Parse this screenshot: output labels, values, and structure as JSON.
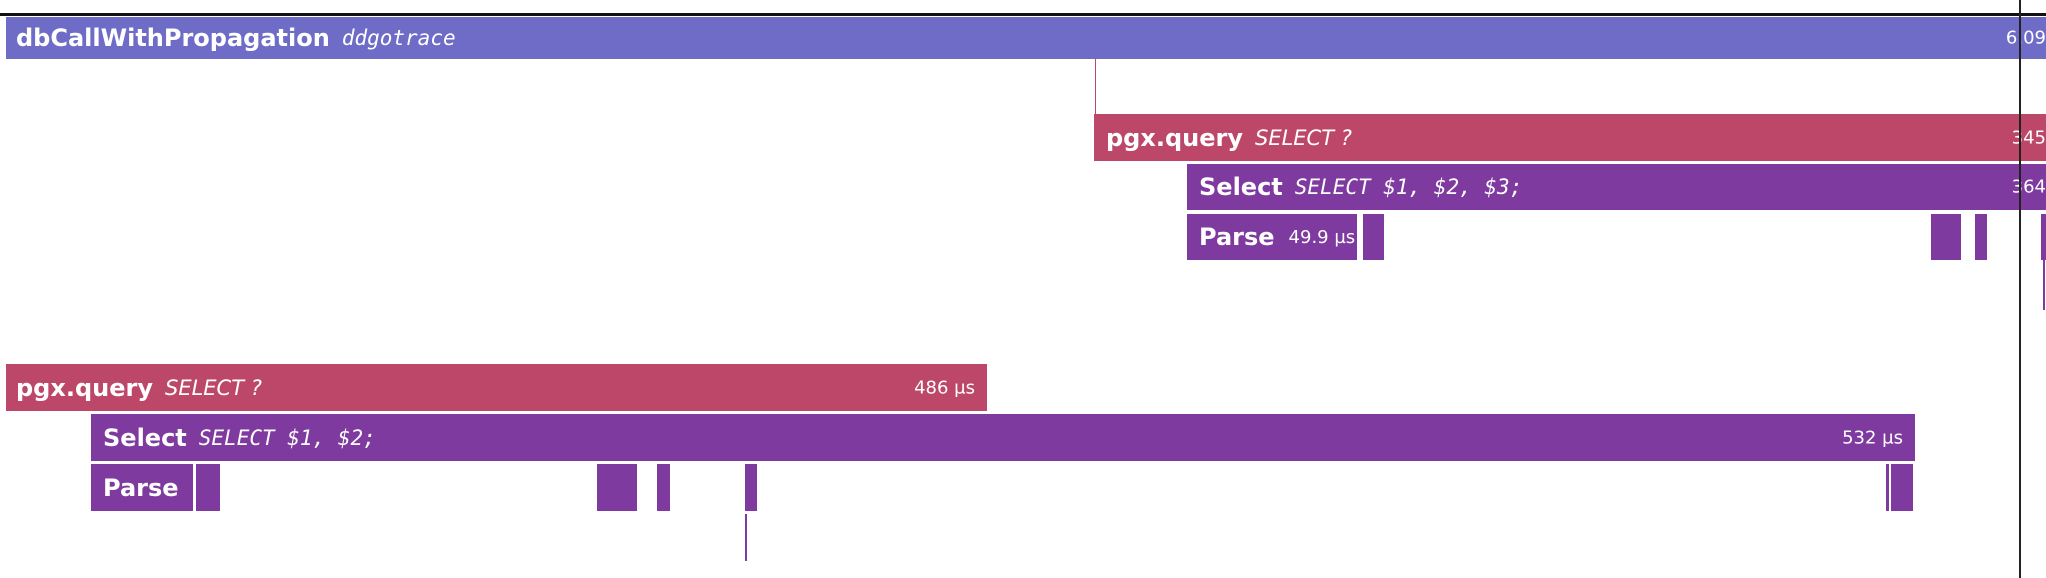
{
  "root": {
    "name": "dbCallWithPropagation",
    "service": "ddgotrace",
    "duration": "6.09"
  },
  "query1": {
    "pgx": {
      "name": "pgx.query",
      "resource": "SELECT ?",
      "duration": "345"
    },
    "select": {
      "name": "Select",
      "resource": "SELECT $1, $2, $3;",
      "duration": "364"
    },
    "parse": {
      "name": "Parse",
      "duration": "49.9 µs"
    }
  },
  "query2": {
    "pgx": {
      "name": "pgx.query",
      "resource": "SELECT ?",
      "duration": "486 µs"
    },
    "select": {
      "name": "Select",
      "resource": "SELECT $1, $2;",
      "duration": "532 µs"
    },
    "parse": {
      "name": "Parse"
    }
  },
  "colors": {
    "root_span": "#6e6cc7",
    "pgx_query_span": "#bd4769",
    "select_span": "#7e3a9e",
    "cursor_line": "#222222"
  }
}
